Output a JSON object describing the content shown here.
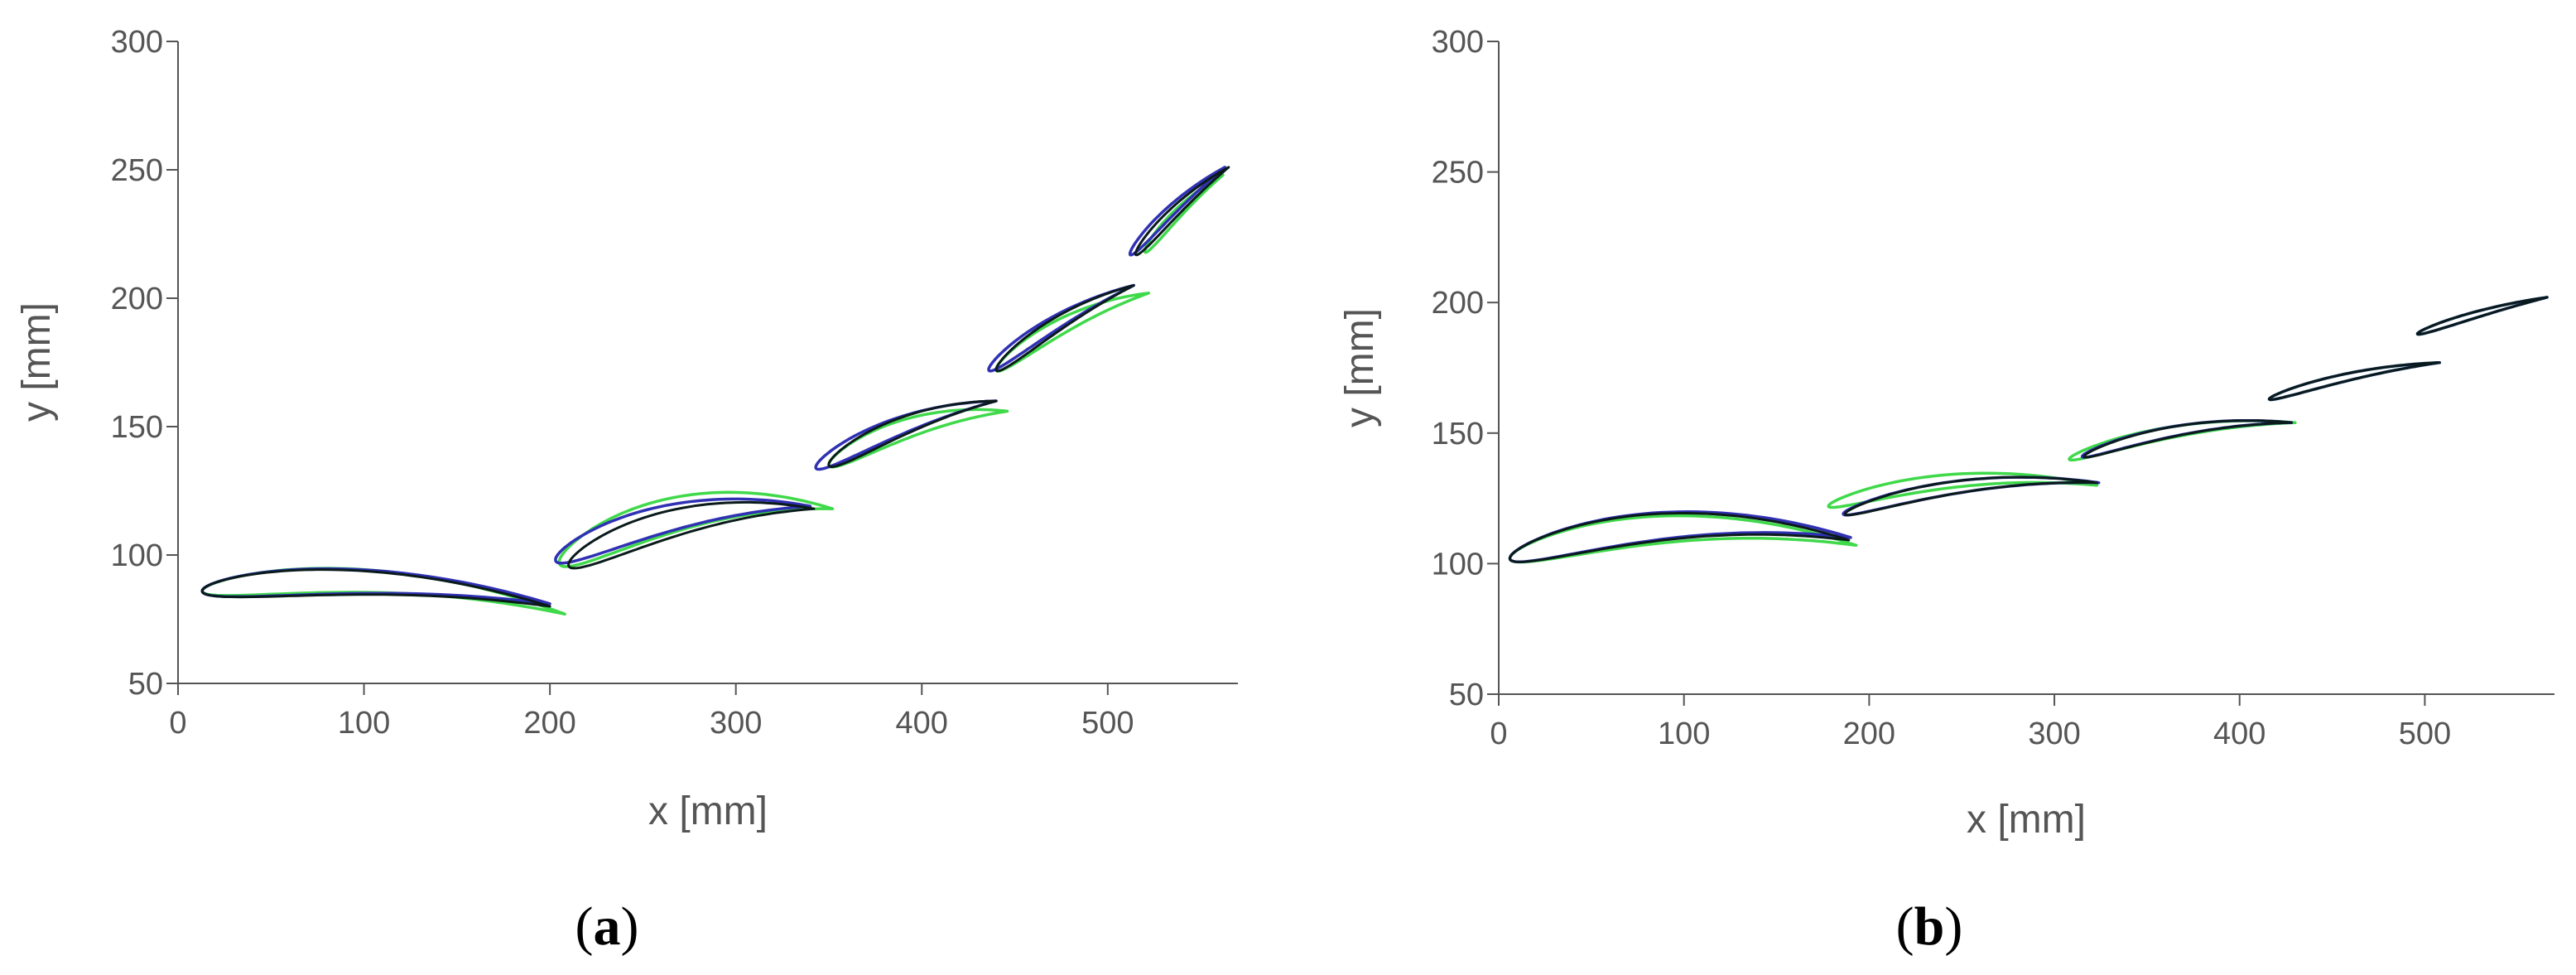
{
  "colors": {
    "green_series": "#3fd94a",
    "blue_series": "#3030b4",
    "black_series": "#0a1a1a",
    "axis": "#555555"
  },
  "chart_data": [
    {
      "type": "line",
      "panel_label": "a",
      "title": "",
      "xlabel": "x [mm]",
      "ylabel": "y [mm]",
      "xlim": [
        0,
        570
      ],
      "ylim": [
        50,
        300
      ],
      "xticks": [
        0,
        100,
        200,
        300,
        400,
        500
      ],
      "yticks": [
        50,
        100,
        150,
        200,
        250,
        300
      ],
      "grid": false,
      "legend": "none",
      "series": [
        {
          "color_key": "green_series",
          "shapes": [
            {
              "le": [
                13,
                86
              ],
              "te": [
                208,
                77
              ],
              "thickness": 19,
              "camber": 8
            },
            {
              "le": [
                205,
                97
              ],
              "te": [
                352,
                118
              ],
              "thickness": 28,
              "camber": 10
            },
            {
              "le": [
                350,
                135
              ],
              "te": [
                446,
                156
              ],
              "thickness": 16,
              "camber": 5
            },
            {
              "le": [
                440,
                172
              ],
              "te": [
                522,
                202
              ],
              "thickness": 13,
              "camber": 4
            },
            {
              "le": [
                520,
                218
              ],
              "te": [
                562,
                248
              ],
              "thickness": 8,
              "camber": 2
            }
          ]
        },
        {
          "color_key": "blue_series",
          "shapes": [
            {
              "le": [
                13,
                86
              ],
              "te": [
                200,
                81
              ],
              "thickness": 20,
              "camber": 6
            },
            {
              "le": [
                203,
                98
              ],
              "te": [
                340,
                119
              ],
              "thickness": 22,
              "camber": 7
            },
            {
              "le": [
                343,
                134
              ],
              "te": [
                440,
                160
              ],
              "thickness": 15,
              "camber": 4
            },
            {
              "le": [
                436,
                172
              ],
              "te": [
                514,
                205
              ],
              "thickness": 12,
              "camber": 3
            },
            {
              "le": [
                512,
                217
              ],
              "te": [
                563,
                251
              ],
              "thickness": 9,
              "camber": 2
            }
          ]
        },
        {
          "color_key": "black_series",
          "shapes": [
            {
              "le": [
                13,
                86
              ],
              "te": [
                200,
                80
              ],
              "thickness": 20,
              "camber": 6
            },
            {
              "le": [
                210,
                96
              ],
              "te": [
                342,
                118
              ],
              "thickness": 22,
              "camber": 7
            },
            {
              "le": [
                350,
                135
              ],
              "te": [
                440,
                160
              ],
              "thickness": 15,
              "camber": 4
            },
            {
              "le": [
                440,
                172
              ],
              "te": [
                514,
                205
              ],
              "thickness": 12,
              "camber": 3
            },
            {
              "le": [
                515,
                217
              ],
              "te": [
                565,
                251
              ],
              "thickness": 9,
              "camber": 2
            }
          ]
        }
      ]
    },
    {
      "type": "line",
      "panel_label": "b",
      "title": "",
      "xlabel": "x [mm]",
      "ylabel": "y [mm]",
      "xlim": [
        0,
        570
      ],
      "ylim": [
        50,
        300
      ],
      "xticks": [
        0,
        100,
        200,
        300,
        400,
        500
      ],
      "yticks": [
        50,
        100,
        150,
        200,
        250,
        300
      ],
      "grid": false,
      "legend": "none",
      "series": [
        {
          "color_key": "green_series",
          "shapes": [
            {
              "le": [
                6,
                102
              ],
              "te": [
                193,
                107
              ],
              "thickness": 22,
              "camber": 9
            },
            {
              "le": [
                178,
                122
              ],
              "te": [
                323,
                130
              ],
              "thickness": 11,
              "camber": 6
            },
            {
              "le": [
                308,
                140
              ],
              "te": [
                430,
                154
              ],
              "thickness": 9,
              "camber": 4
            },
            {
              "le": [
                416,
                163
              ],
              "te": [
                508,
                177
              ],
              "thickness": 6,
              "camber": 2
            },
            {
              "le": [
                496,
                188
              ],
              "te": [
                566,
                202
              ],
              "thickness": 5,
              "camber": 1
            }
          ]
        },
        {
          "color_key": "blue_series",
          "shapes": [
            {
              "le": [
                6,
                102
              ],
              "te": [
                190,
                110
              ],
              "thickness": 22,
              "camber": 9
            },
            {
              "le": [
                186,
                119
              ],
              "te": [
                324,
                131
              ],
              "thickness": 10,
              "camber": 5
            },
            {
              "le": [
                315,
                141
              ],
              "te": [
                428,
                154
              ],
              "thickness": 8,
              "camber": 4
            },
            {
              "le": [
                416,
                163
              ],
              "te": [
                508,
                177
              ],
              "thickness": 6,
              "camber": 2
            },
            {
              "le": [
                496,
                188
              ],
              "te": [
                566,
                202
              ],
              "thickness": 5,
              "camber": 1
            }
          ]
        },
        {
          "color_key": "black_series",
          "shapes": [
            {
              "le": [
                6,
                102
              ],
              "te": [
                189,
                109
              ],
              "thickness": 22,
              "camber": 9
            },
            {
              "le": [
                187,
                119
              ],
              "te": [
                323,
                131
              ],
              "thickness": 10,
              "camber": 5
            },
            {
              "le": [
                316,
                141
              ],
              "te": [
                428,
                154
              ],
              "thickness": 8,
              "camber": 4
            },
            {
              "le": [
                416,
                163
              ],
              "te": [
                508,
                177
              ],
              "thickness": 6,
              "camber": 2
            },
            {
              "le": [
                496,
                188
              ],
              "te": [
                566,
                202
              ],
              "thickness": 5,
              "camber": 1
            }
          ]
        }
      ]
    }
  ]
}
